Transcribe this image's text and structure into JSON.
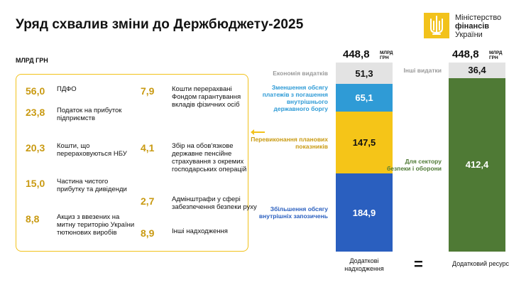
{
  "header": {
    "title": "Уряд схвалив зміни до Держбюджету-2025",
    "logo_line1": "Міністерство",
    "logo_line2": "фінансів",
    "logo_line3": "України",
    "logo_icon": "trident-icon",
    "brand_color": "#f2c21b"
  },
  "unit_label": "МЛРД ГРН",
  "left_items": [
    {
      "value": "56,0",
      "label": "ПДФО"
    },
    {
      "value": "23,8",
      "label": "Податок на прибуток підприємств"
    },
    {
      "value": "20,3",
      "label": "Кошти, що перераховуються НБУ"
    },
    {
      "value": "15,0",
      "label": "Частина чистого прибутку та дивіденди"
    },
    {
      "value": "8,8",
      "label": "Акциз з ввезених на митну територію України тютюнових виробів"
    },
    {
      "value": "7,9",
      "label": "Кошти перерахвані Фондом гарантування вкладів фізичних осіб"
    },
    {
      "value": "4,1",
      "label": "Збір на обов'язкове державне пенсійне страхування з окремих господарських операцій"
    },
    {
      "value": "2,7",
      "label": "Адмінштрафи у сфері забезпечення безпеки руху"
    },
    {
      "value": "8,9",
      "label": "Інші надходження"
    }
  ],
  "chart_data": [
    {
      "type": "bar",
      "stacked": true,
      "total_value": "448,8",
      "total_unit_line1": "МЛРД",
      "total_unit_line2": "ГРН",
      "caption": "Додаткові надходження",
      "series": [
        {
          "name": "Економія видатків",
          "value": 51.3,
          "label": "51,3",
          "color": "#e3e3e3",
          "text_color": "#111111"
        },
        {
          "name": "Зменшення обсягу платежів з погашення внутрішнього державного боргу",
          "value": 65.1,
          "label": "65,1",
          "color": "#2f9bd6",
          "text_color": "#ffffff"
        },
        {
          "name": "Перевиконання планових показників",
          "value": 147.5,
          "label": "147,5",
          "color": "#f5c518",
          "text_color": "#111111"
        },
        {
          "name": "Збільшення обсягу внутрішніх запозичень",
          "value": 184.9,
          "label": "184,9",
          "color": "#2a5fbf",
          "text_color": "#ffffff"
        }
      ]
    },
    {
      "type": "bar",
      "stacked": true,
      "total_value": "448,8",
      "total_unit_line1": "МЛРД",
      "total_unit_line2": "ГРН",
      "caption": "Додатковий ресурс",
      "series": [
        {
          "name": "Інші видатки",
          "value": 36.4,
          "label": "36,4",
          "color": "#e3e3e3",
          "text_color": "#111111"
        },
        {
          "name": "Для сектору безпеки і оборони",
          "value": 412.4,
          "label": "412,4",
          "color": "#4f7a35",
          "text_color": "#ffffff"
        }
      ]
    }
  ],
  "label_colors": {
    "Економія видатків": "#9a9a9a",
    "Зменшення обсягу платежів з погашення внутрішнього державного боргу": "#2f9bd6",
    "Перевиконання планових показників": "#c99a12",
    "Збільшення обсягу внутрішніх запозичень": "#2a5fbf",
    "Інші видатки": "#9a9a9a",
    "Для сектору безпеки і оборони": "#4f7a35"
  },
  "equals_sign": "="
}
